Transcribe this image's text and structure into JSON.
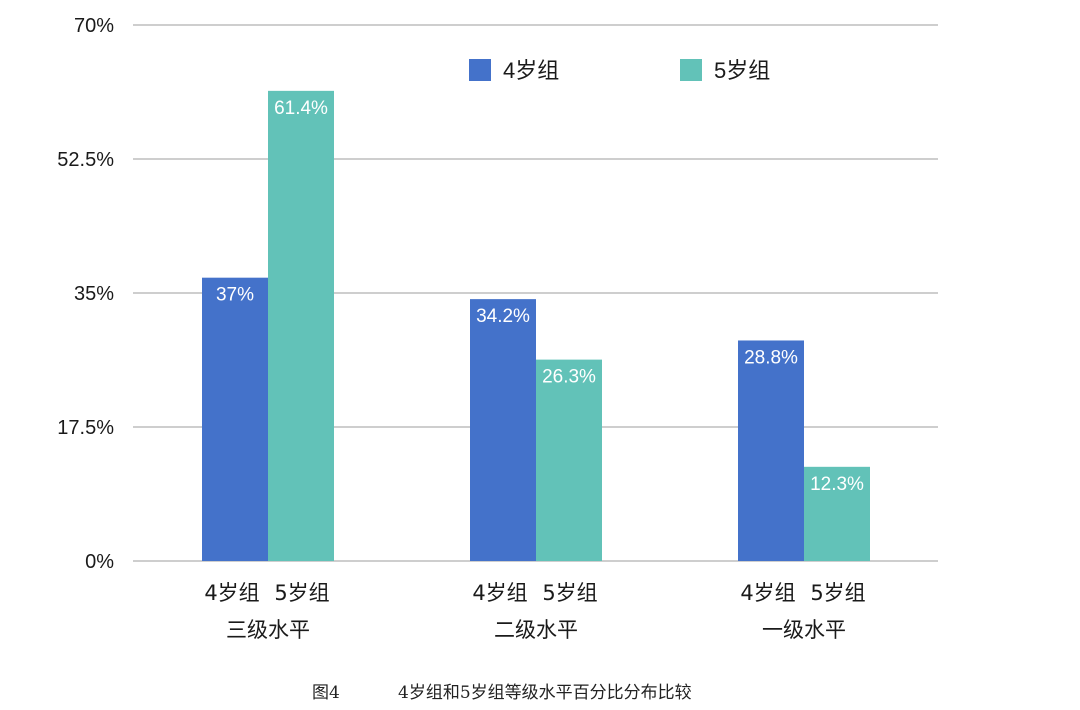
{
  "caption": {
    "figure_label": "图4",
    "title": "4岁组和5岁组等级水平百分比分布比较"
  },
  "colors": {
    "series_4": "#4472CA",
    "series_5": "#62C2B8",
    "grid": "#BDBDBD"
  },
  "chart_data": {
    "type": "bar",
    "title": "",
    "xlabel": "",
    "ylabel": "",
    "ylim": [
      0,
      70
    ],
    "yticks": [
      0,
      17.5,
      35,
      52.5,
      70
    ],
    "ytick_labels": [
      "0%",
      "17.5%",
      "35%",
      "52.5%",
      "70%"
    ],
    "grid": true,
    "legend_position": "top-right",
    "categories": [
      "三级水平",
      "二级水平",
      "一级水平"
    ],
    "bar_sublabels": [
      "4岁组",
      "5岁组"
    ],
    "series": [
      {
        "name": "4岁组",
        "values": [
          37,
          34.2,
          28.8
        ],
        "labels": [
          "37%",
          "34.2%",
          "28.8%"
        ]
      },
      {
        "name": "5岁组",
        "values": [
          61.4,
          26.3,
          12.3
        ],
        "labels": [
          "61.4%",
          "26.3%",
          "12.3%"
        ]
      }
    ]
  }
}
